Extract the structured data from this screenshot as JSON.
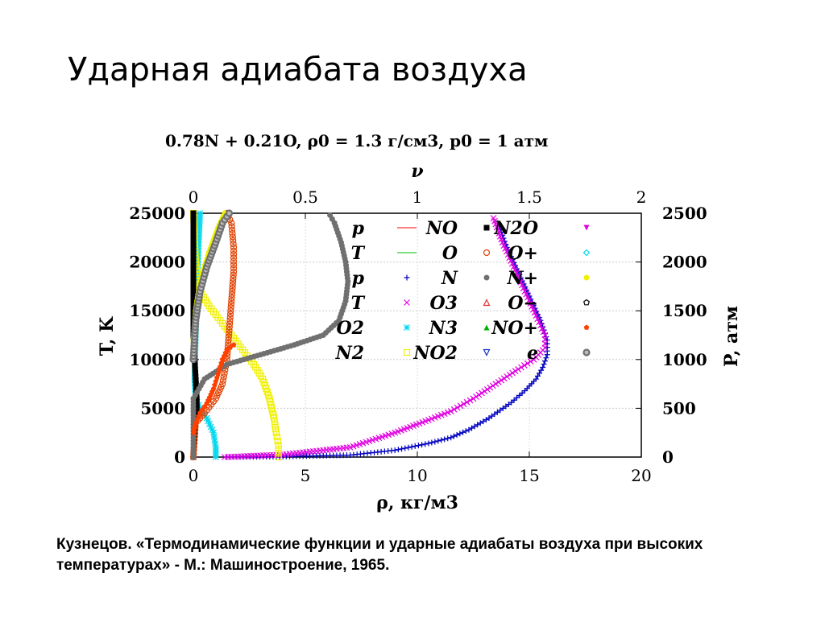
{
  "slide": {
    "title": "Ударная адиабата воздуха",
    "caption": "Кузнецов. «Термодинамические функции и ударные адиабаты воздуха при высоких температурах» - М.: Машиностроение, 1965."
  },
  "chart_data": {
    "type": "line",
    "title": "0.78N + 0.21O, ρ0 = 1.3 г/см3, p0 = 1 атм",
    "xlabel": "ρ, кг/м3",
    "x2label": "ν",
    "ylabel": "T, K",
    "y2label": "P, атм",
    "xlim": [
      0,
      20
    ],
    "x2lim": [
      0,
      2
    ],
    "ylim": [
      0,
      25000
    ],
    "y2lim": [
      0,
      2500
    ],
    "x_ticks": [
      "0",
      "5",
      "10",
      "15",
      "20"
    ],
    "x2_ticks": [
      "0",
      "0.5",
      "1",
      "1.5",
      "2"
    ],
    "y_ticks": [
      "0",
      "5000",
      "10000",
      "15000",
      "20000",
      "25000"
    ],
    "y2_ticks": [
      "0",
      "500",
      "1000",
      "1500",
      "2000",
      "2500"
    ],
    "grid": true,
    "legend_placement": "top-right",
    "legend": [
      {
        "label": "p",
        "color": "#ff0000",
        "marker": "line"
      },
      {
        "label": "T",
        "color": "#00c000",
        "marker": "line"
      },
      {
        "label": "p",
        "color": "#0000c0",
        "marker": "plus"
      },
      {
        "label": "T",
        "color": "#e000e0",
        "marker": "cross"
      },
      {
        "label": "O2",
        "color": "#00d8ee",
        "marker": "star"
      },
      {
        "label": "N2",
        "color": "#f0f000",
        "marker": "square"
      },
      {
        "label": "NO",
        "color": "#000000",
        "marker": "filled-square"
      },
      {
        "label": "O",
        "color": "#e04000",
        "marker": "circle"
      },
      {
        "label": "N",
        "color": "#707070",
        "marker": "filled-circle"
      },
      {
        "label": "O3",
        "color": "#e03030",
        "marker": "triangle"
      },
      {
        "label": "N3",
        "color": "#00b000",
        "marker": "filled-triangle"
      },
      {
        "label": "NO2",
        "color": "#1030c0",
        "marker": "inv-triangle"
      },
      {
        "label": "N2O",
        "color": "#e000e0",
        "marker": "filled-inv-triangle"
      },
      {
        "label": "O+",
        "color": "#00d8ee",
        "marker": "diamond"
      },
      {
        "label": "N+",
        "color": "#f0f000",
        "marker": "filled-circle"
      },
      {
        "label": "O−",
        "color": "#000000",
        "marker": "pentagon"
      },
      {
        "label": "NO+",
        "color": "#ff4000",
        "marker": "filled-pentagon"
      },
      {
        "label": "e",
        "color": "#707070",
        "marker": "double-circle"
      }
    ],
    "series": [
      {
        "name": "p",
        "axes": "ρ–P",
        "color": "#0000c0",
        "marker": "plus",
        "points": [
          [
            1.5,
            0
          ],
          [
            4,
            5
          ],
          [
            7,
            20
          ],
          [
            9,
            70
          ],
          [
            10.5,
            140
          ],
          [
            11.5,
            200
          ],
          [
            12.3,
            280
          ],
          [
            13.2,
            400
          ],
          [
            14.2,
            560
          ],
          [
            14.8,
            680
          ],
          [
            15.3,
            800
          ],
          [
            15.6,
            920
          ],
          [
            15.8,
            1050
          ],
          [
            15.8,
            1200
          ],
          [
            15.5,
            1400
          ],
          [
            15.0,
            1650
          ],
          [
            14.5,
            1900
          ],
          [
            14.0,
            2150
          ],
          [
            13.6,
            2400
          ]
        ]
      },
      {
        "name": "T",
        "axes": "ρ–T",
        "color": "#e000e0",
        "marker": "cross",
        "points": [
          [
            1.4,
            0
          ],
          [
            4,
            250
          ],
          [
            7,
            1000
          ],
          [
            9,
            2500
          ],
          [
            10.5,
            3800
          ],
          [
            11.5,
            4700
          ],
          [
            12.5,
            6000
          ],
          [
            13.5,
            7500
          ],
          [
            14.5,
            9000
          ],
          [
            15.2,
            10000
          ],
          [
            15.7,
            11200
          ],
          [
            15.7,
            12500
          ],
          [
            15.3,
            14500
          ],
          [
            14.8,
            17000
          ],
          [
            14.3,
            19500
          ],
          [
            13.8,
            22000
          ],
          [
            13.4,
            24500
          ]
        ]
      },
      {
        "name": "O2",
        "axes": "ν–T",
        "color": "#00d8ee",
        "marker": "star",
        "points": [
          [
            0.1,
            0
          ],
          [
            0.1,
            1000
          ],
          [
            0.09,
            2500
          ],
          [
            0.06,
            4000
          ],
          [
            0.03,
            5000
          ],
          [
            0.01,
            6000
          ],
          [
            0.005,
            8000
          ],
          [
            0.02,
            20000
          ],
          [
            0.03,
            25000
          ]
        ]
      },
      {
        "name": "N2",
        "axes": "ν–T",
        "color": "#f0f000",
        "marker": "square",
        "points": [
          [
            0.38,
            0
          ],
          [
            0.38,
            1200
          ],
          [
            0.37,
            2500
          ],
          [
            0.36,
            4000
          ],
          [
            0.34,
            6000
          ],
          [
            0.31,
            8000
          ],
          [
            0.27,
            9500
          ],
          [
            0.22,
            11000
          ],
          [
            0.17,
            12500
          ],
          [
            0.12,
            14000
          ],
          [
            0.07,
            15500
          ],
          [
            0.03,
            17000
          ],
          [
            0.01,
            20000
          ],
          [
            0.0,
            25000
          ]
        ]
      },
      {
        "name": "NO",
        "axes": "ν–T",
        "color": "#000000",
        "marker": "filled-square",
        "points": [
          [
            0.0,
            0
          ],
          [
            0.005,
            2500
          ],
          [
            0.01,
            4500
          ],
          [
            0.015,
            5000
          ],
          [
            0.015,
            6000
          ],
          [
            0.012,
            7500
          ],
          [
            0.008,
            9000
          ],
          [
            0.005,
            10500
          ],
          [
            0.0,
            12500
          ],
          [
            0.0,
            25000
          ]
        ]
      },
      {
        "name": "O",
        "axes": "ν–T",
        "color": "#e04000",
        "marker": "circle",
        "points": [
          [
            0.0,
            0
          ],
          [
            0.01,
            3500
          ],
          [
            0.05,
            4500
          ],
          [
            0.1,
            6000
          ],
          [
            0.13,
            7500
          ],
          [
            0.15,
            10000
          ],
          [
            0.16,
            13000
          ],
          [
            0.17,
            16000
          ],
          [
            0.18,
            19000
          ],
          [
            0.18,
            21500
          ],
          [
            0.17,
            24000
          ],
          [
            0.15,
            25000
          ]
        ]
      },
      {
        "name": "N",
        "axes": "ν–T",
        "color": "#707070",
        "marker": "filled-circle",
        "points": [
          [
            0.0,
            0
          ],
          [
            0.0,
            6000
          ],
          [
            0.05,
            8000
          ],
          [
            0.15,
            9500
          ],
          [
            0.3,
            10500
          ],
          [
            0.45,
            11500
          ],
          [
            0.58,
            12500
          ],
          [
            0.65,
            14000
          ],
          [
            0.68,
            16000
          ],
          [
            0.69,
            18000
          ],
          [
            0.68,
            20000
          ],
          [
            0.66,
            22000
          ],
          [
            0.63,
            24000
          ],
          [
            0.61,
            24800
          ]
        ]
      },
      {
        "name": "N+",
        "axes": "ν–T",
        "color": "#f0f000",
        "marker": "filled-circle",
        "points": [
          [
            0.0,
            12000
          ],
          [
            0.01,
            15000
          ],
          [
            0.03,
            18000
          ],
          [
            0.07,
            21000
          ],
          [
            0.11,
            23500
          ],
          [
            0.14,
            25000
          ]
        ]
      },
      {
        "name": "NO+",
        "axes": "ν–T",
        "color": "#ff4000",
        "marker": "filled-pentagon",
        "points": [
          [
            0.0,
            2500
          ],
          [
            0.01,
            3500
          ],
          [
            0.03,
            4500
          ],
          [
            0.06,
            5500
          ],
          [
            0.09,
            7000
          ],
          [
            0.11,
            8500
          ],
          [
            0.13,
            10000
          ],
          [
            0.15,
            11000
          ],
          [
            0.18,
            11500
          ]
        ]
      },
      {
        "name": "e",
        "axes": "ν–T",
        "color": "#707070",
        "marker": "double-circle",
        "points": [
          [
            0.0,
            10000
          ],
          [
            0.01,
            14000
          ],
          [
            0.03,
            17000
          ],
          [
            0.06,
            19500
          ],
          [
            0.1,
            22000
          ],
          [
            0.13,
            24000
          ],
          [
            0.16,
            25000
          ]
        ]
      }
    ]
  }
}
